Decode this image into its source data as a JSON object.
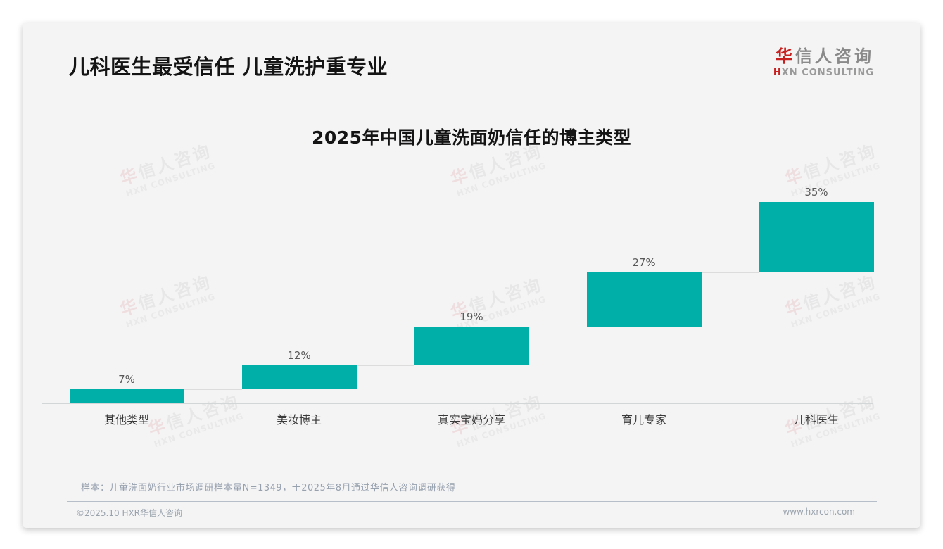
{
  "page": {
    "header": {
      "title": "儿科医生最受信任 儿童洗护重专业"
    },
    "logo": {
      "name_accent": "华",
      "name_rest": "信人咨询",
      "sub_accent": "H",
      "sub_rest": "XN CONSULTING"
    },
    "watermark": {
      "line1": "华信人咨询",
      "line2": "HXN CONSULTING"
    },
    "note": "样本：儿童洗面奶行业市场调研样本量N=1349，于2025年8月通过华信人咨询调研获得",
    "footer": {
      "copyright": "©2025.10 HXR华信人咨询",
      "website": "www.hxrcon.com"
    }
  },
  "colors": {
    "bar_teal": "#00b0a8",
    "logo_red": "#c8201e",
    "percent_label": "#595959",
    "category_label": "#3a3a3a",
    "axis": "#d2d6d7",
    "connector": "#dcdcdc",
    "note_text": "#97a1ae",
    "footer_text": "#9aa3ad",
    "card_bg": "#f4f4f5"
  },
  "chart_data": {
    "type": "bar",
    "variant": "stepped-waterfall: each bar's base sits at the cumulative total of all previous bars",
    "title": "2025年中国儿童洗面奶信任的博主类型",
    "categories": [
      "其他类型",
      "美妆博主",
      "真实宝妈分享",
      "育儿专家",
      "儿科医生"
    ],
    "values": [
      7,
      12,
      19,
      27,
      35
    ],
    "value_labels": [
      "7%",
      "12%",
      "19%",
      "27%",
      "35%"
    ],
    "cumulative_totals": [
      7,
      19,
      38,
      65,
      100
    ],
    "unit": "%",
    "ylim": [
      0,
      100
    ],
    "xlabel": "",
    "ylabel": "",
    "grid": false,
    "legend": false,
    "bar_color": "#00b0a8"
  }
}
